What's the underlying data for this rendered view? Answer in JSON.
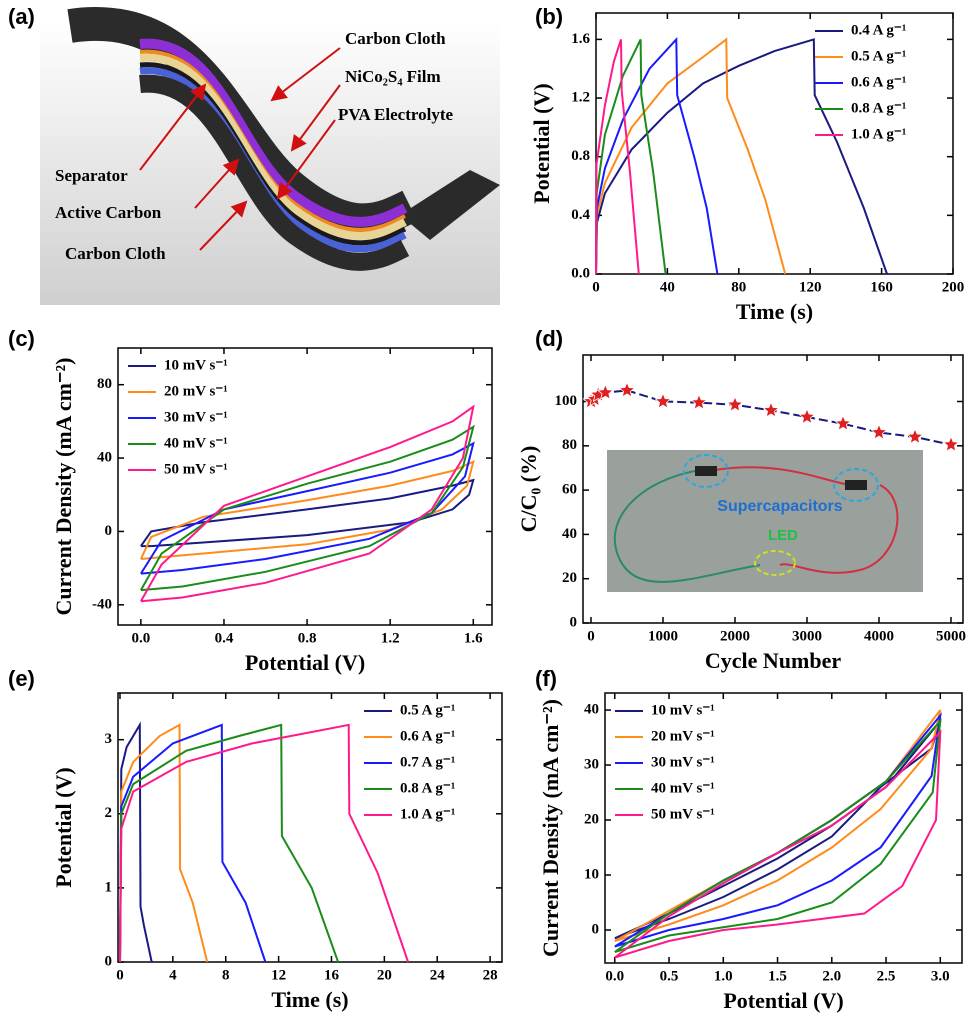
{
  "figure_a": {
    "label": "(a)",
    "labels": [
      "Carbon Cloth",
      "NiCo₂S₄ Film",
      "PVA Electrolyte",
      "Separator",
      "Active Carbon",
      "Carbon Cloth"
    ]
  },
  "chart_data": [
    {
      "type": "line",
      "label": "(b)",
      "xlabel": "Time (s)",
      "ylabel": "Potential (V)",
      "legend": "upper right",
      "xlim": [
        0,
        200
      ],
      "ylim": [
        0,
        1.78
      ],
      "xticks": [
        0,
        40,
        80,
        120,
        160,
        200
      ],
      "yticks": [
        {
          "value": 0,
          "label": "0.0"
        },
        0.4,
        0.8,
        1.2,
        1.6
      ],
      "series": [
        {
          "name": "0.4 A g⁻¹",
          "color": "#1a1a80",
          "x": [
            0,
            0.5,
            5,
            20,
            40,
            60,
            80,
            100,
            122,
            122.5,
            135,
            150,
            163
          ],
          "values": [
            0,
            0.35,
            0.55,
            0.85,
            1.1,
            1.3,
            1.42,
            1.52,
            1.6,
            1.22,
            0.9,
            0.45,
            0
          ]
        },
        {
          "name": "0.5 A g⁻¹",
          "color": "#ff8c1a",
          "x": [
            0,
            0.5,
            5,
            20,
            40,
            60,
            73,
            73.5,
            85,
            95,
            106
          ],
          "values": [
            0,
            0.4,
            0.62,
            1.0,
            1.3,
            1.48,
            1.6,
            1.2,
            0.85,
            0.5,
            0
          ]
        },
        {
          "name": "0.6 A g⁻¹",
          "color": "#1a1aff",
          "x": [
            0,
            0.5,
            5,
            15,
            30,
            45,
            45.5,
            55,
            62,
            68
          ],
          "values": [
            0,
            0.45,
            0.72,
            1.05,
            1.4,
            1.6,
            1.22,
            0.8,
            0.45,
            0
          ]
        },
        {
          "name": "0.8 A g⁻¹",
          "color": "#1a8c1a",
          "x": [
            0,
            0.4,
            5,
            15,
            25,
            25.4,
            32,
            39
          ],
          "values": [
            0,
            0.55,
            0.95,
            1.35,
            1.6,
            1.22,
            0.7,
            0
          ]
        },
        {
          "name": "1.0 A g⁻¹",
          "color": "#ff1a8c",
          "x": [
            0,
            0.3,
            5,
            10,
            14,
            14.4,
            19,
            24
          ],
          "values": [
            0,
            0.75,
            1.15,
            1.45,
            1.6,
            1.25,
            0.7,
            0
          ]
        }
      ]
    },
    {
      "type": "line",
      "label": "(c)",
      "xlabel": "Potential (V)",
      "ylabel": "Current Density (mA cm⁻²)",
      "legend": "upper left",
      "xlim": [
        -0.11,
        1.69
      ],
      "ylim": [
        -51,
        100
      ],
      "xticks": [
        {
          "value": 0,
          "label": "0.0"
        },
        0.4,
        0.8,
        1.2,
        1.6
      ],
      "yticks": [
        -40,
        0,
        40,
        80
      ],
      "series": [
        {
          "name": "10 mV s⁻¹",
          "color": "#1a1a80",
          "x": [
            0,
            0.05,
            0.3,
            0.8,
            1.2,
            1.5,
            1.6,
            1.58,
            1.5,
            1.3,
            0.8,
            0.3,
            0.05,
            0
          ],
          "values": [
            -8,
            0,
            5,
            12,
            18,
            25,
            28,
            20,
            12,
            5,
            -2,
            -6,
            -8,
            -8
          ]
        },
        {
          "name": "20 mV s⁻¹",
          "color": "#ff8c1a",
          "x": [
            0,
            0.05,
            0.3,
            0.8,
            1.2,
            1.5,
            1.6,
            1.57,
            1.45,
            1.2,
            0.8,
            0.3,
            0
          ],
          "values": [
            -15,
            -3,
            8,
            17,
            25,
            33,
            38,
            25,
            12,
            1,
            -7,
            -12,
            -15
          ]
        },
        {
          "name": "30 mV s⁻¹",
          "color": "#1a1aff",
          "x": [
            0,
            0.1,
            0.4,
            0.8,
            1.2,
            1.5,
            1.6,
            1.56,
            1.4,
            1.1,
            0.6,
            0.2,
            0
          ],
          "values": [
            -23,
            -5,
            12,
            22,
            32,
            42,
            48,
            30,
            10,
            -4,
            -15,
            -21,
            -23
          ]
        },
        {
          "name": "40 mV s⁻¹",
          "color": "#1a8c1a",
          "x": [
            0,
            0.1,
            0.4,
            0.8,
            1.2,
            1.5,
            1.6,
            1.55,
            1.4,
            1.1,
            0.6,
            0.2,
            0
          ],
          "values": [
            -32,
            -12,
            12,
            26,
            38,
            50,
            57,
            35,
            10,
            -8,
            -22,
            -30,
            -32
          ]
        },
        {
          "name": "50 mV s⁻¹",
          "color": "#ff1a8c",
          "x": [
            0,
            0.1,
            0.4,
            0.8,
            1.2,
            1.5,
            1.6,
            1.55,
            1.4,
            1.1,
            0.6,
            0.2,
            0
          ],
          "values": [
            -38,
            -18,
            14,
            30,
            46,
            60,
            68,
            40,
            12,
            -12,
            -28,
            -36,
            -38
          ]
        }
      ]
    },
    {
      "type": "line",
      "label": "(d)",
      "xlabel": "Cycle Number",
      "ylabel": "C/C₀ (%)",
      "marker": "star",
      "dash": true,
      "annotations": [
        "Supercapacitors",
        "LED"
      ],
      "xlim": [
        -111,
        5167
      ],
      "ylim": [
        0,
        121
      ],
      "xticks": [
        0,
        1000,
        2000,
        3000,
        4000,
        5000
      ],
      "yticks": [
        0,
        20,
        40,
        60,
        80,
        100
      ],
      "series": [
        {
          "color": "#1a1a80",
          "marker_color": "#e02020",
          "x": [
            0,
            50,
            100,
            200,
            500,
            1000,
            1500,
            2000,
            2500,
            3000,
            3500,
            4000,
            4500,
            5000
          ],
          "values": [
            100,
            101,
            103,
            104,
            105,
            100,
            99.5,
            98.5,
            96,
            93,
            90,
            86,
            84,
            80.5
          ]
        }
      ]
    },
    {
      "type": "line",
      "label": "(e)",
      "xlabel": "Time (s)",
      "ylabel": "Potential (V)",
      "legend": "upper right",
      "xlim": [
        -0.15,
        28.9
      ],
      "ylim": [
        0,
        3.63
      ],
      "xticks": [
        0,
        4,
        8,
        12,
        16,
        20,
        24,
        28
      ],
      "yticks": [
        0,
        1,
        2,
        3
      ],
      "series": [
        {
          "name": "0.5 A g⁻¹",
          "color": "#1a1a80",
          "x": [
            0,
            0.1,
            0.5,
            1.5,
            1.55,
            1.8,
            2.4
          ],
          "values": [
            0,
            2.6,
            2.9,
            3.2,
            0.75,
            0.5,
            0
          ]
        },
        {
          "name": "0.6 A g⁻¹",
          "color": "#ff8c1a",
          "x": [
            0,
            0.1,
            1,
            3,
            4.5,
            4.55,
            5.5,
            6.6
          ],
          "values": [
            0,
            2.3,
            2.7,
            3.05,
            3.2,
            1.25,
            0.8,
            0
          ]
        },
        {
          "name": "0.7 A g⁻¹",
          "color": "#1a1aff",
          "x": [
            0,
            0.1,
            1,
            4,
            7.7,
            7.75,
            9.5,
            11
          ],
          "values": [
            0,
            2.1,
            2.5,
            2.95,
            3.2,
            1.35,
            0.8,
            0
          ]
        },
        {
          "name": "0.8 A g⁻¹",
          "color": "#1a8c1a",
          "x": [
            0,
            0.1,
            1,
            5,
            9,
            12.2,
            12.25,
            14.5,
            16.5
          ],
          "values": [
            0,
            2.0,
            2.4,
            2.85,
            3.05,
            3.2,
            1.7,
            1.0,
            0
          ]
        },
        {
          "name": "1.0 A g⁻¹",
          "color": "#ff1a8c",
          "x": [
            0,
            0.1,
            1,
            5,
            10,
            17.3,
            17.35,
            19.5,
            21.8
          ],
          "values": [
            0,
            1.8,
            2.3,
            2.7,
            2.95,
            3.2,
            2.0,
            1.2,
            0
          ]
        }
      ]
    },
    {
      "type": "line",
      "label": "(f)",
      "xlabel": "Potential (V)",
      "ylabel": "Current Density (mA cm⁻²)",
      "legend": "upper left",
      "xlim": [
        -0.09,
        3.2
      ],
      "ylim": [
        -6,
        43.1
      ],
      "xticks": [
        {
          "value": 0,
          "label": "0.0"
        },
        0.5,
        {
          "value": 1,
          "label": "1.0"
        },
        1.5,
        {
          "value": 2,
          "label": "2.0"
        },
        2.5,
        {
          "value": 3,
          "label": "3.0"
        }
      ],
      "yticks": [
        0,
        10,
        20,
        30,
        40
      ],
      "series": [
        {
          "name": "10 mV s⁻¹",
          "color": "#1a1a80",
          "x": [
            0,
            0.5,
            1,
            1.5,
            2,
            2.5,
            3.0,
            2.92,
            2.45,
            2,
            1.5,
            1,
            0.5,
            0
          ],
          "values": [
            -1.5,
            3,
            8,
            13,
            19,
            26,
            38,
            33,
            26,
            17,
            11,
            6,
            2,
            -1.5
          ]
        },
        {
          "name": "20 mV s⁻¹",
          "color": "#ff8c1a",
          "x": [
            0,
            0.5,
            1,
            1.5,
            2,
            2.5,
            3.0,
            2.92,
            2.45,
            2,
            1.5,
            1,
            0.5,
            0
          ],
          "values": [
            -2,
            3.5,
            9,
            14,
            20,
            27,
            40,
            33,
            22,
            15,
            9,
            4.5,
            1,
            -2
          ]
        },
        {
          "name": "30 mV s⁻¹",
          "color": "#1a1aff",
          "x": [
            0,
            0.5,
            1,
            1.5,
            2,
            2.5,
            3.0,
            2.92,
            2.45,
            2,
            1.5,
            1,
            0.5,
            0
          ],
          "values": [
            -3,
            3,
            9,
            14,
            20,
            27,
            39,
            28,
            15,
            9,
            4.5,
            2,
            0,
            -3
          ]
        },
        {
          "name": "40 mV s⁻¹",
          "color": "#1a8c1a",
          "x": [
            0,
            0.5,
            1,
            1.5,
            2,
            2.5,
            3.0,
            2.93,
            2.45,
            2,
            1.5,
            1,
            0.5,
            0
          ],
          "values": [
            -4,
            3,
            9,
            14,
            20,
            27,
            38,
            25,
            12,
            5,
            2,
            0.5,
            -1,
            -4
          ]
        },
        {
          "name": "50 mV s⁻¹",
          "color": "#ff1a8c",
          "x": [
            0,
            0.5,
            1,
            1.5,
            2,
            2.5,
            3.0,
            2.96,
            2.65,
            2.3,
            1.5,
            1,
            0.5,
            0
          ],
          "values": [
            -5,
            2.5,
            8.5,
            14,
            19,
            26,
            36,
            20,
            8,
            3,
            1,
            0,
            -2,
            -5
          ]
        }
      ]
    }
  ]
}
